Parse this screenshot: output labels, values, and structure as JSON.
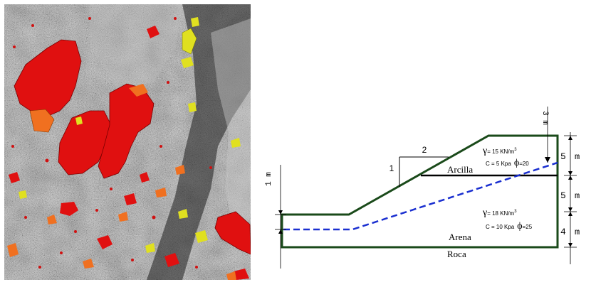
{
  "photo": {
    "description_icon": "aerial-landslide-map",
    "colors": {
      "high": "#e01010",
      "medium": "#f07020",
      "low": "#e0e020",
      "terrain_dark": "#2a2a2a",
      "terrain_light": "#9a9a9a"
    }
  },
  "diagram": {
    "slope_ratio": {
      "vertical": "1",
      "horizontal": "2"
    },
    "layers": [
      {
        "name": "Arcilla",
        "gamma_symbol": "γ",
        "gamma": "= 15 KN/m",
        "gamma_exp": "3",
        "cohesion": "C = 5 Kpa",
        "phi_symbol": "ϕ",
        "phi": "=20"
      },
      {
        "name": "Arena",
        "gamma_symbol": "γ",
        "gamma": "= 18 KN/m",
        "gamma_exp": "3",
        "cohesion": "C = 10 Kpa",
        "phi_symbol": "ϕ",
        "phi": "=25"
      }
    ],
    "base_label": "Roca",
    "dims": {
      "top_water": "3 m",
      "clay_thickness_num": "5",
      "clay_thickness_unit": "m",
      "sand_upper_num": "5",
      "sand_upper_unit": "m",
      "sand_lower_num": "4",
      "sand_lower_unit": "m",
      "left_water": "1 m"
    },
    "colors": {
      "outline": "#1a4a1a",
      "water": "#1a2fd0",
      "boundary": "#000000"
    }
  }
}
